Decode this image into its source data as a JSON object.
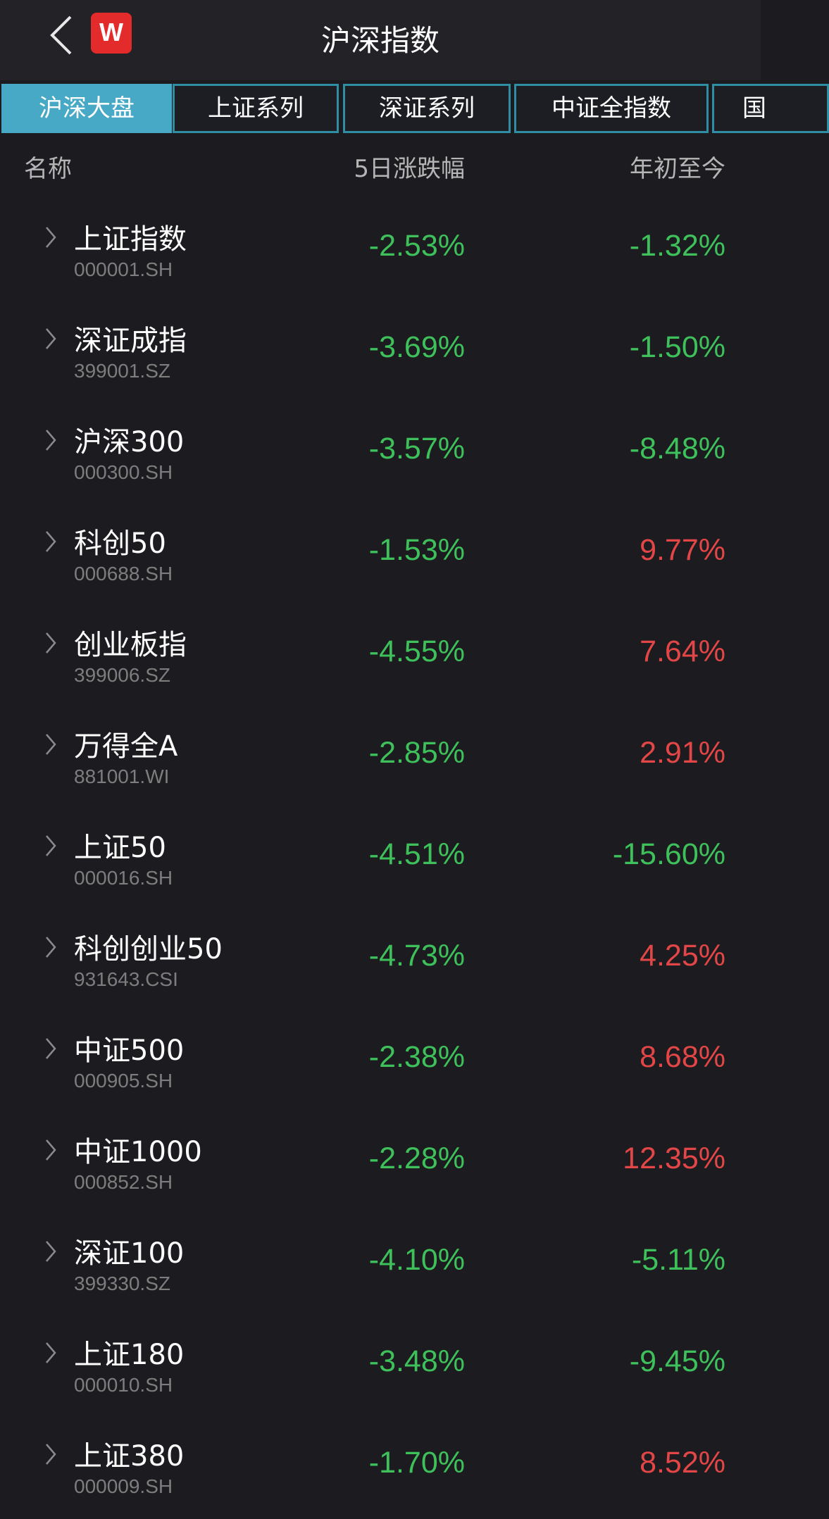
{
  "header": {
    "title": "沪深指数",
    "logo_text": "W",
    "back_icon": "chevron-left-icon"
  },
  "colors": {
    "up": "#e24646",
    "down": "#3ec15b",
    "accent": "#47a9c5"
  },
  "tabs": [
    {
      "label": "沪深大盘",
      "active": true
    },
    {
      "label": "上证系列",
      "active": false
    },
    {
      "label": "深证系列",
      "active": false
    },
    {
      "label": "中证全指数",
      "active": false
    },
    {
      "label": "国",
      "active": false
    }
  ],
  "columns": {
    "name": "名称",
    "change5d": "5日涨跌幅",
    "ytd": "年初至今"
  },
  "rows": [
    {
      "name": "上证指数",
      "code": "000001.SH",
      "change5d": "-2.53%",
      "ytd": "-1.32%"
    },
    {
      "name": "深证成指",
      "code": "399001.SZ",
      "change5d": "-3.69%",
      "ytd": "-1.50%"
    },
    {
      "name": "沪深300",
      "code": "000300.SH",
      "change5d": "-3.57%",
      "ytd": "-8.48%"
    },
    {
      "name": "科创50",
      "code": "000688.SH",
      "change5d": "-1.53%",
      "ytd": "9.77%"
    },
    {
      "name": "创业板指",
      "code": "399006.SZ",
      "change5d": "-4.55%",
      "ytd": "7.64%"
    },
    {
      "name": "万得全A",
      "code": "881001.WI",
      "change5d": "-2.85%",
      "ytd": "2.91%"
    },
    {
      "name": "上证50",
      "code": "000016.SH",
      "change5d": "-4.51%",
      "ytd": "-15.60%"
    },
    {
      "name": "科创创业50",
      "code": "931643.CSI",
      "change5d": "-4.73%",
      "ytd": "4.25%"
    },
    {
      "name": "中证500",
      "code": "000905.SH",
      "change5d": "-2.38%",
      "ytd": "8.68%"
    },
    {
      "name": "中证1000",
      "code": "000852.SH",
      "change5d": "-2.28%",
      "ytd": "12.35%"
    },
    {
      "name": "深证100",
      "code": "399330.SZ",
      "change5d": "-4.10%",
      "ytd": "-5.11%"
    },
    {
      "name": "上证180",
      "code": "000010.SH",
      "change5d": "-3.48%",
      "ytd": "-9.45%"
    },
    {
      "name": "上证380",
      "code": "000009.SH",
      "change5d": "-1.70%",
      "ytd": "8.52%"
    }
  ]
}
